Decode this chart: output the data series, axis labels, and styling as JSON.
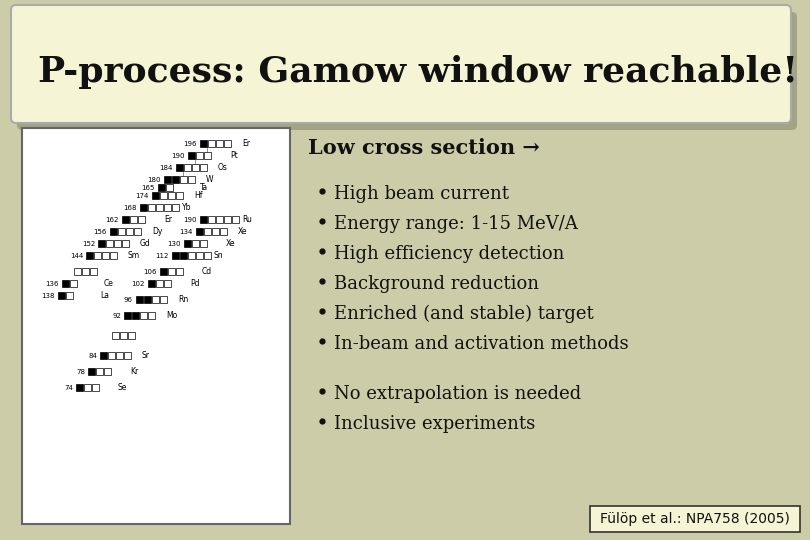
{
  "title": "P-process: Gamow window reachable!",
  "title_fontsize": 26,
  "title_fontweight": "bold",
  "slide_bg": "#cccca8",
  "title_box_color": "#f5f5d5",
  "title_box_border": "#aaaaaa",
  "subtitle": "Low cross section →",
  "subtitle_fontsize": 15,
  "subtitle_fontweight": "bold",
  "bullets": [
    "High beam current",
    "Energy range: 1-15 MeV/A",
    "High efficiency detection",
    "Background reduction",
    "Enriched (and stable) target",
    "In-beam and activation methods"
  ],
  "bullets2": [
    "No extrapolation is needed",
    "Inclusive experiments"
  ],
  "bullet_fontsize": 13,
  "ref_text": "Fülöp et al.: NPA758 (2005)",
  "ref_fontsize": 10,
  "image_box_border": "#666666",
  "text_color": "#111111",
  "white": "#ffffff",
  "black": "#000000"
}
